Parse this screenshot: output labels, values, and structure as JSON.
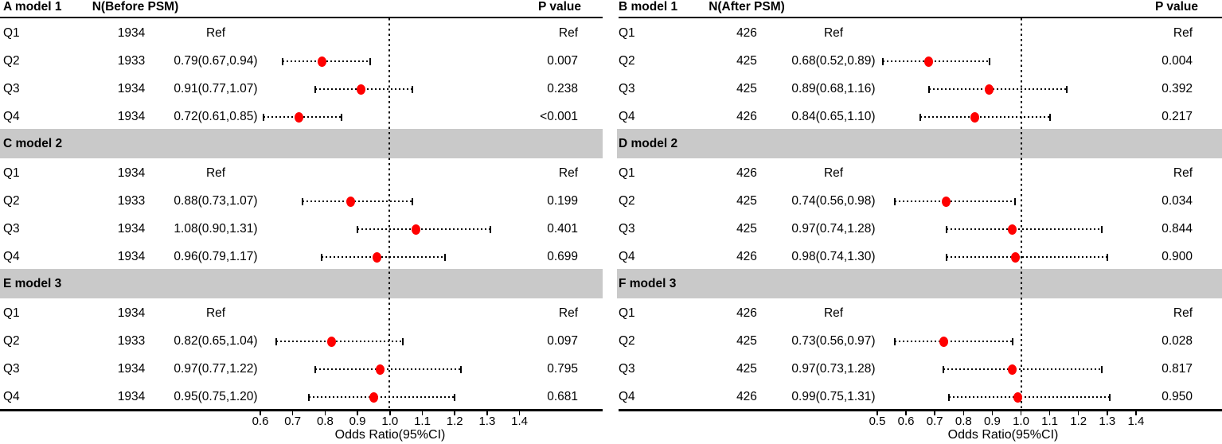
{
  "colors": {
    "marker": "#ff0000",
    "band": "#c9c9c9",
    "line": "#000000"
  },
  "chart_data": [
    {
      "type": "scatter",
      "subtype": "forest-plot",
      "panel": "before-psm",
      "header": {
        "n": "N(Before PSM)",
        "p": "P value"
      },
      "axis": {
        "title": "Odds Ratio(95%CI)",
        "tick_labels": [
          "0.6",
          "0.7",
          "0.8",
          "0.9",
          "1.0",
          "1.1",
          "1.2",
          "1.3",
          "1.4"
        ],
        "range": [
          0.6,
          1.4
        ],
        "ref_line": 1.0
      },
      "sections": [
        {
          "label": "A model 1",
          "rows": [
            {
              "group": "Q1",
              "n": "1934",
              "or": "Ref",
              "p": "Ref"
            },
            {
              "group": "Q2",
              "n": "1933",
              "or": "0.79(0.67,0.94)",
              "p": "0.007",
              "est": 0.79,
              "lo": 0.67,
              "hi": 0.94
            },
            {
              "group": "Q3",
              "n": "1934",
              "or": "0.91(0.77,1.07)",
              "p": "0.238",
              "est": 0.91,
              "lo": 0.77,
              "hi": 1.07
            },
            {
              "group": "Q4",
              "n": "1934",
              "or": "0.72(0.61,0.85)",
              "p": "<0.001",
              "est": 0.72,
              "lo": 0.61,
              "hi": 0.85
            }
          ]
        },
        {
          "label": "C model 2",
          "rows": [
            {
              "group": "Q1",
              "n": "1934",
              "or": "Ref",
              "p": "Ref"
            },
            {
              "group": "Q2",
              "n": "1933",
              "or": "0.88(0.73,1.07)",
              "p": "0.199",
              "est": 0.88,
              "lo": 0.73,
              "hi": 1.07
            },
            {
              "group": "Q3",
              "n": "1934",
              "or": "1.08(0.90,1.31)",
              "p": "0.401",
              "est": 1.08,
              "lo": 0.9,
              "hi": 1.31
            },
            {
              "group": "Q4",
              "n": "1934",
              "or": "0.96(0.79,1.17)",
              "p": "0.699",
              "est": 0.96,
              "lo": 0.79,
              "hi": 1.17
            }
          ]
        },
        {
          "label": "E model 3",
          "rows": [
            {
              "group": "Q1",
              "n": "1934",
              "or": "Ref",
              "p": "Ref"
            },
            {
              "group": "Q2",
              "n": "1933",
              "or": "0.82(0.65,1.04)",
              "p": "0.097",
              "est": 0.82,
              "lo": 0.65,
              "hi": 1.04
            },
            {
              "group": "Q3",
              "n": "1934",
              "or": "0.97(0.77,1.22)",
              "p": "0.795",
              "est": 0.97,
              "lo": 0.77,
              "hi": 1.22
            },
            {
              "group": "Q4",
              "n": "1934",
              "or": "0.95(0.75,1.20)",
              "p": "0.681",
              "est": 0.95,
              "lo": 0.75,
              "hi": 1.2
            }
          ]
        }
      ]
    },
    {
      "type": "scatter",
      "subtype": "forest-plot",
      "panel": "after-psm",
      "header": {
        "n": "N(After PSM)",
        "p": "P value"
      },
      "axis": {
        "title": "Odds Ratio(95%CI)",
        "tick_labels": [
          "0.5",
          "0.6",
          "0.7",
          "0.8",
          "0.9",
          "1.0",
          "1.1",
          "1.2",
          "1.3",
          "1.4"
        ],
        "range": [
          0.5,
          1.4
        ],
        "ref_line": 1.0
      },
      "sections": [
        {
          "label": "B model 1",
          "rows": [
            {
              "group": "Q1",
              "n": "426",
              "or": "Ref",
              "p": "Ref"
            },
            {
              "group": "Q2",
              "n": "425",
              "or": "0.68(0.52,0.89)",
              "p": "0.004",
              "est": 0.68,
              "lo": 0.52,
              "hi": 0.89
            },
            {
              "group": "Q3",
              "n": "425",
              "or": "0.89(0.68,1.16)",
              "p": "0.392",
              "est": 0.89,
              "lo": 0.68,
              "hi": 1.16
            },
            {
              "group": "Q4",
              "n": "426",
              "or": "0.84(0.65,1.10)",
              "p": "0.217",
              "est": 0.84,
              "lo": 0.65,
              "hi": 1.1
            }
          ]
        },
        {
          "label": "D model 2",
          "rows": [
            {
              "group": "Q1",
              "n": "426",
              "or": "Ref",
              "p": "Ref"
            },
            {
              "group": "Q2",
              "n": "425",
              "or": "0.74(0.56,0.98)",
              "p": "0.034",
              "est": 0.74,
              "lo": 0.56,
              "hi": 0.98
            },
            {
              "group": "Q3",
              "n": "425",
              "or": "0.97(0.74,1.28)",
              "p": "0.844",
              "est": 0.97,
              "lo": 0.74,
              "hi": 1.28
            },
            {
              "group": "Q4",
              "n": "426",
              "or": "0.98(0.74,1.30)",
              "p": "0.900",
              "est": 0.98,
              "lo": 0.74,
              "hi": 1.3
            }
          ]
        },
        {
          "label": "F model 3",
          "rows": [
            {
              "group": "Q1",
              "n": "426",
              "or": "Ref",
              "p": "Ref"
            },
            {
              "group": "Q2",
              "n": "425",
              "or": "0.73(0.56,0.97)",
              "p": "0.028",
              "est": 0.73,
              "lo": 0.56,
              "hi": 0.97
            },
            {
              "group": "Q3",
              "n": "425",
              "or": "0.97(0.73,1.28)",
              "p": "0.817",
              "est": 0.97,
              "lo": 0.73,
              "hi": 1.28
            },
            {
              "group": "Q4",
              "n": "426",
              "or": "0.99(0.75,1.31)",
              "p": "0.950",
              "est": 0.99,
              "lo": 0.75,
              "hi": 1.31
            }
          ]
        }
      ]
    }
  ]
}
